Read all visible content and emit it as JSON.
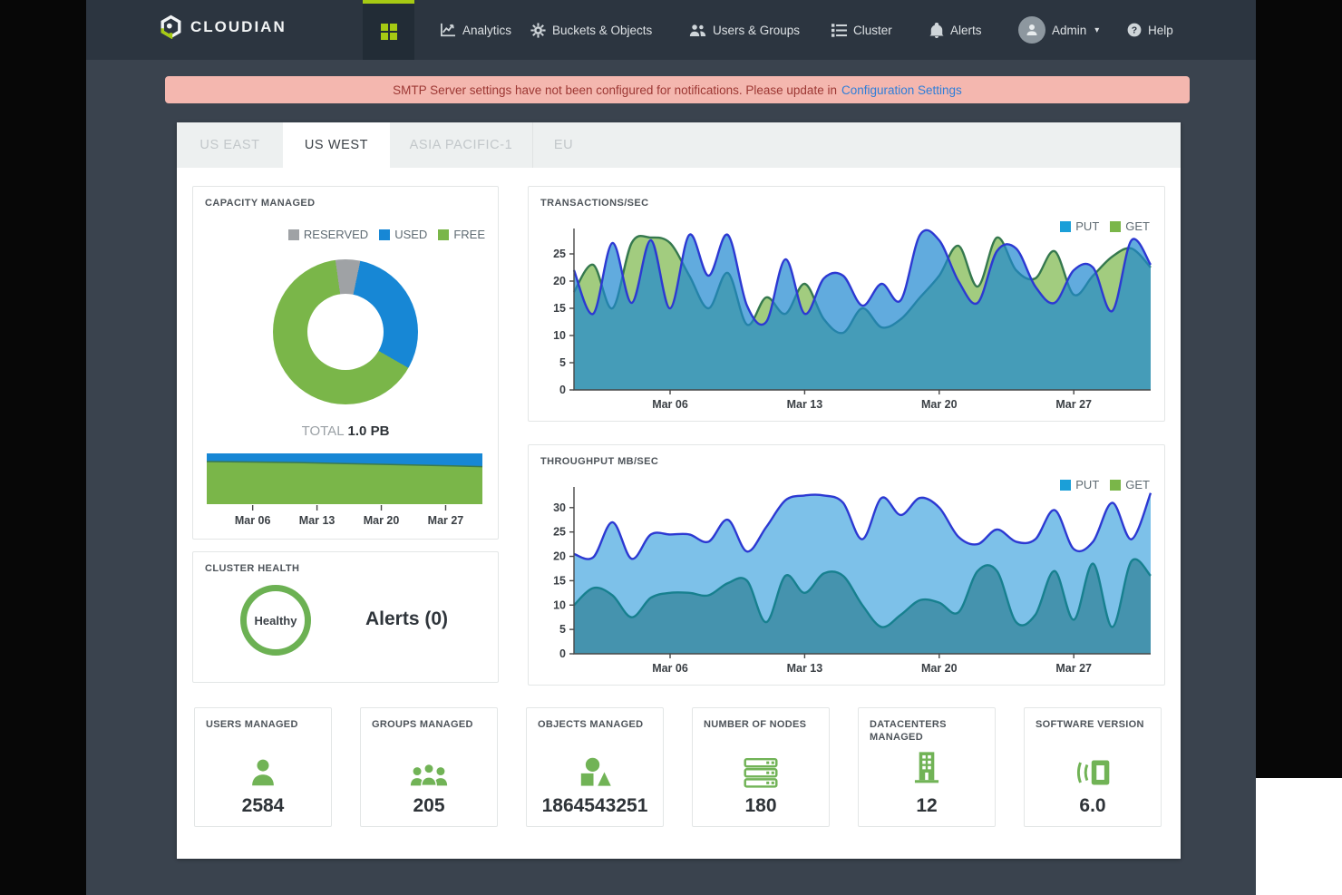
{
  "navbar": {
    "brand": "CLOUDIAN",
    "items": [
      {
        "label": "Analytics"
      },
      {
        "label": "Buckets & Objects"
      },
      {
        "label": "Users & Groups"
      },
      {
        "label": "Cluster"
      },
      {
        "label": "Alerts"
      }
    ],
    "admin": {
      "label": "Admin"
    },
    "help": {
      "label": "Help"
    }
  },
  "banner": {
    "text": "SMTP Server settings have not been configured for notifications. Please update in",
    "link_text": "Configuration Settings",
    "bg": "#f4b7af",
    "text_color": "#9c3733",
    "link_color": "#2f7ed8"
  },
  "tabs": [
    {
      "label": "US EAST",
      "active": false
    },
    {
      "label": "US WEST",
      "active": true
    },
    {
      "label": "ASIA PACIFIC-1",
      "active": false
    },
    {
      "label": "EU",
      "active": false
    }
  ],
  "capacity": {
    "title": "CAPACITY MANAGED",
    "legend": [
      {
        "label": "RESERVED",
        "color": "#9fa2a5"
      },
      {
        "label": "USED",
        "color": "#1787d5"
      },
      {
        "label": "FREE",
        "color": "#7ab649"
      }
    ],
    "total_label": "TOTAL",
    "total_value": "1.0 PB"
  },
  "cluster_health": {
    "title": "CLUSTER HEALTH",
    "status": "Healthy",
    "alerts_label": "Alerts (0)",
    "ring_color": "#6cb153"
  },
  "transactions": {
    "title": "TRANSACTIONS/SEC",
    "legend": [
      {
        "label": "PUT",
        "color": "#1b9fd8"
      },
      {
        "label": "GET",
        "color": "#7ab649"
      }
    ]
  },
  "throughput": {
    "title": "THROUGHPUT MB/SEC",
    "legend": [
      {
        "label": "PUT",
        "color": "#1b9fd8"
      },
      {
        "label": "GET",
        "color": "#7ab649"
      }
    ]
  },
  "stats": [
    {
      "title": "USERS MANAGED",
      "value": "2584",
      "icon": "user-icon"
    },
    {
      "title": "GROUPS MANAGED",
      "value": "205",
      "icon": "group-icon"
    },
    {
      "title": "OBJECTS MANAGED",
      "value": "1864543251",
      "icon": "objects-icon"
    },
    {
      "title": "NUMBER OF NODES",
      "value": "180",
      "icon": "nodes-icon"
    },
    {
      "title": "DATACENTERS MANAGED",
      "value": "12",
      "icon": "datacenter-icon"
    },
    {
      "title": "SOFTWARE VERSION",
      "value": "6.0",
      "icon": "version-icon"
    }
  ],
  "chart_data": [
    {
      "id": "capacity-donut",
      "type": "pie",
      "title": "CAPACITY MANAGED",
      "start_angle_deg": -8,
      "slices": [
        {
          "label": "RESERVED",
          "percent": 5.5,
          "color": "#9fa2a5"
        },
        {
          "label": "USED",
          "percent": 30,
          "color": "#1787d5"
        },
        {
          "label": "FREE",
          "percent": 64.5,
          "color": "#7ab649"
        }
      ],
      "total": "1.0 PB"
    },
    {
      "id": "capacity-trend",
      "type": "area",
      "title": "Capacity over time (stacked: used on top, free below, total 1.0 PB)",
      "x_start": 1,
      "x_end": 31,
      "x_ticks": [
        {
          "day": 6,
          "label": "Mar 06"
        },
        {
          "day": 13,
          "label": "Mar 13"
        },
        {
          "day": 20,
          "label": "Mar 20"
        },
        {
          "day": 27,
          "label": "Mar 27"
        }
      ],
      "used_days": [
        1,
        6,
        11,
        16,
        21,
        26,
        31
      ],
      "used_fraction": [
        0.16,
        0.17,
        0.18,
        0.2,
        0.22,
        0.24,
        0.26
      ],
      "used_color": "#1787d5",
      "free_color": "#7ab649",
      "boundary_stroke": "#3b7a4d"
    },
    {
      "id": "transactions",
      "type": "area",
      "title": "TRANSACTIONS/SEC",
      "x_start": 1,
      "x_end": 31,
      "x_ticks": [
        {
          "day": 6,
          "label": "Mar 06"
        },
        {
          "day": 13,
          "label": "Mar 13"
        },
        {
          "day": 20,
          "label": "Mar 20"
        },
        {
          "day": 27,
          "label": "Mar 27"
        }
      ],
      "y_ticks": [
        0,
        5,
        10,
        15,
        20,
        25
      ],
      "y_max": 29,
      "legend_position": "top-right",
      "series": [
        {
          "name": "GET",
          "fill": "#a2cc7f",
          "stroke": "#35784e",
          "values": [
            18,
            23,
            15,
            27,
            28,
            27,
            21,
            15,
            21.5,
            12,
            17,
            14,
            19.5,
            13,
            10.5,
            15,
            11.5,
            13,
            17,
            21,
            26.5,
            19,
            28,
            22,
            20.5,
            25.5,
            17.5,
            21,
            24.5,
            26,
            22.5
          ]
        },
        {
          "name": "PUT",
          "fill": "rgba(30,136,208,0.70)",
          "stroke": "#2c39d2",
          "values": [
            22,
            14,
            27,
            16,
            27.5,
            15,
            28.5,
            21,
            28.5,
            15.5,
            12.5,
            24,
            14,
            20.5,
            21,
            15.5,
            19.5,
            16.5,
            28.5,
            27.5,
            20,
            16,
            25.5,
            26,
            19,
            16,
            22,
            22.5,
            14.5,
            27.5,
            23
          ]
        }
      ]
    },
    {
      "id": "throughput",
      "type": "area",
      "title": "THROUGHPUT MB/SEC",
      "x_start": 1,
      "x_end": 31,
      "x_ticks": [
        {
          "day": 6,
          "label": "Mar 06"
        },
        {
          "day": 13,
          "label": "Mar 13"
        },
        {
          "day": 20,
          "label": "Mar 20"
        },
        {
          "day": 27,
          "label": "Mar 27"
        }
      ],
      "y_ticks": [
        0,
        5,
        10,
        15,
        20,
        25,
        30
      ],
      "y_max": 33.5,
      "legend_position": "top-right",
      "series": [
        {
          "name": "PUT",
          "fill": "#7dc1e9",
          "stroke": "#2c39d2",
          "values": [
            20.5,
            19.8,
            27,
            19.5,
            24.5,
            24.5,
            24.5,
            23,
            27.5,
            21,
            26,
            31.5,
            32.5,
            32.5,
            31,
            23.5,
            32,
            28.5,
            32,
            30,
            24,
            22.5,
            25.5,
            23,
            23.5,
            29.5,
            21.5,
            23,
            31,
            23.5,
            33
          ]
        },
        {
          "name": "GET",
          "fill": "rgba(23,110,125,0.55)",
          "stroke": "#17808f",
          "values": [
            10,
            13.5,
            12,
            7.5,
            11.5,
            12.5,
            12.5,
            12,
            14.5,
            15,
            6.5,
            16,
            12.5,
            16.5,
            16,
            10,
            5.5,
            8,
            11,
            10.5,
            8.5,
            17,
            17,
            6.5,
            8,
            17,
            7,
            18.5,
            5.5,
            19,
            16
          ]
        }
      ]
    }
  ]
}
